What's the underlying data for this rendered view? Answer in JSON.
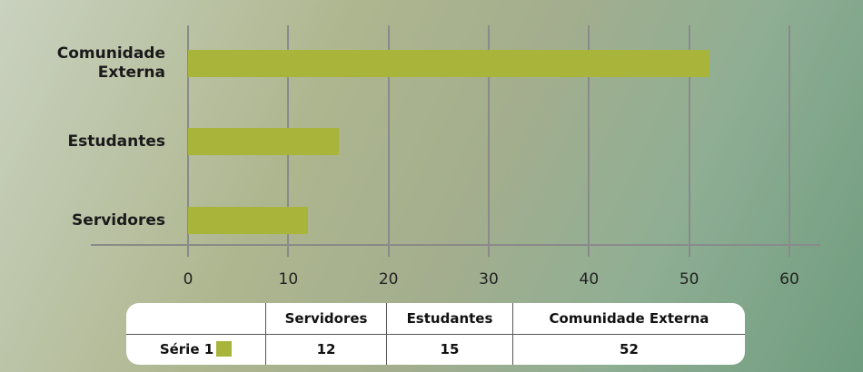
{
  "chart_data": {
    "type": "bar",
    "orientation": "horizontal",
    "categories": [
      "Servidores",
      "Estudantes",
      "Comunidade Externa"
    ],
    "series": [
      {
        "name": "Série 1",
        "color": "#a8b53a",
        "values": [
          12,
          15,
          52
        ]
      }
    ],
    "xlim": [
      0,
      60
    ],
    "xticks": [
      0,
      10,
      20,
      30,
      40,
      50,
      60
    ],
    "grid": true,
    "data_table": true
  }
}
